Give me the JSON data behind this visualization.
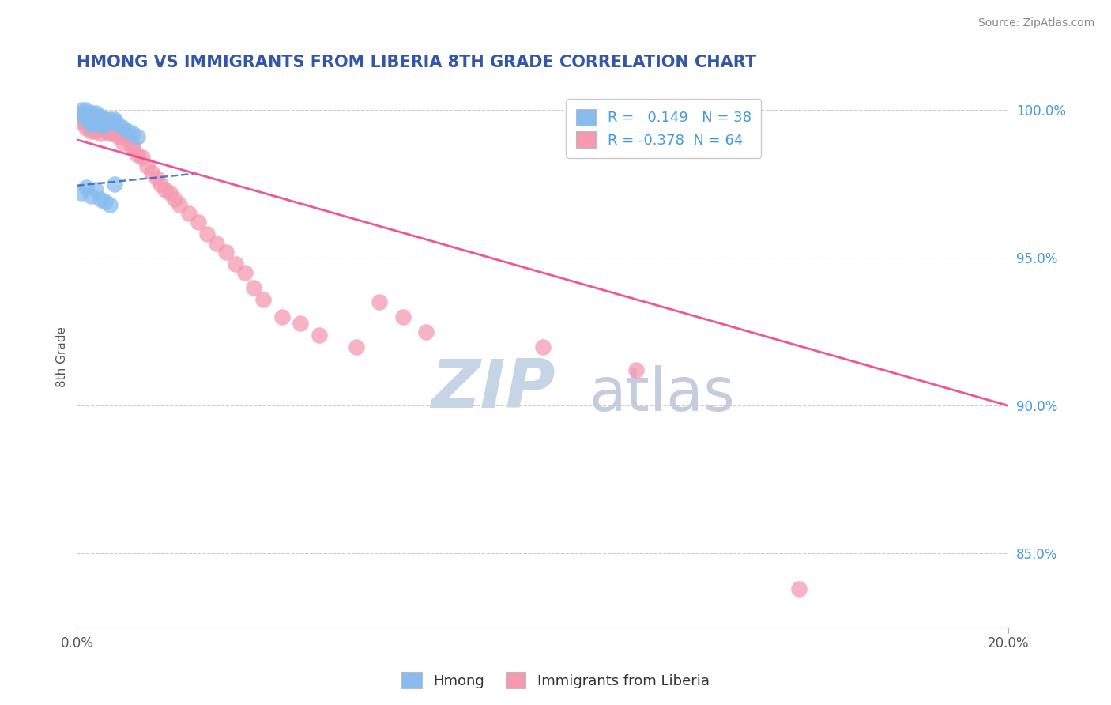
{
  "title": "HMONG VS IMMIGRANTS FROM LIBERIA 8TH GRADE CORRELATION CHART",
  "source": "Source: ZipAtlas.com",
  "ylabel": "8th Grade",
  "ylabel_right_ticks": [
    "100.0%",
    "95.0%",
    "90.0%",
    "85.0%"
  ],
  "ylabel_right_vals": [
    1.0,
    0.95,
    0.9,
    0.85
  ],
  "xlim": [
    0.0,
    0.2
  ],
  "ylim": [
    0.825,
    1.008
  ],
  "R_hmong": 0.149,
  "N_hmong": 38,
  "R_liberia": -0.378,
  "N_liberia": 64,
  "hmong_color": "#88BBEE",
  "liberia_color": "#F599B0",
  "hmong_line_color": "#3366CC",
  "liberia_line_color": "#EE4488",
  "watermark_zip": "ZIP",
  "watermark_atlas": "atlas",
  "watermark_color_zip": "#C5D5E5",
  "watermark_color_atlas": "#C5CCDD",
  "grid_color": "#CCCCCC",
  "title_color": "#3355AA",
  "axis_label_color": "#555555",
  "right_axis_color": "#4499DD",
  "hmong_x": [
    0.001,
    0.001,
    0.002,
    0.002,
    0.002,
    0.003,
    0.003,
    0.003,
    0.003,
    0.003,
    0.004,
    0.004,
    0.004,
    0.004,
    0.005,
    0.005,
    0.005,
    0.005,
    0.006,
    0.006,
    0.006,
    0.007,
    0.007,
    0.008,
    0.008,
    0.009,
    0.01,
    0.011,
    0.012,
    0.013,
    0.001,
    0.002,
    0.003,
    0.004,
    0.005,
    0.006,
    0.007,
    0.008
  ],
  "hmong_y": [
    1.0,
    0.999,
    1.0,
    0.998,
    0.997,
    0.999,
    0.998,
    0.997,
    0.996,
    0.995,
    0.999,
    0.998,
    0.997,
    0.996,
    0.998,
    0.997,
    0.996,
    0.995,
    0.997,
    0.996,
    0.995,
    0.997,
    0.996,
    0.997,
    0.996,
    0.995,
    0.994,
    0.993,
    0.992,
    0.991,
    0.972,
    0.974,
    0.971,
    0.973,
    0.97,
    0.969,
    0.968,
    0.975
  ],
  "liberia_x": [
    0.001,
    0.001,
    0.001,
    0.002,
    0.002,
    0.002,
    0.002,
    0.003,
    0.003,
    0.003,
    0.003,
    0.003,
    0.004,
    0.004,
    0.004,
    0.004,
    0.005,
    0.005,
    0.005,
    0.005,
    0.006,
    0.006,
    0.006,
    0.007,
    0.007,
    0.007,
    0.008,
    0.008,
    0.009,
    0.009,
    0.01,
    0.01,
    0.011,
    0.012,
    0.012,
    0.013,
    0.014,
    0.015,
    0.016,
    0.017,
    0.018,
    0.019,
    0.02,
    0.021,
    0.022,
    0.024,
    0.026,
    0.028,
    0.03,
    0.032,
    0.034,
    0.036,
    0.038,
    0.04,
    0.044,
    0.048,
    0.052,
    0.06,
    0.065,
    0.07,
    0.075,
    0.1,
    0.12,
    0.155
  ],
  "liberia_y": [
    0.998,
    0.997,
    0.996,
    0.998,
    0.996,
    0.995,
    0.994,
    0.997,
    0.996,
    0.995,
    0.994,
    0.993,
    0.997,
    0.995,
    0.994,
    0.993,
    0.996,
    0.995,
    0.994,
    0.992,
    0.995,
    0.994,
    0.993,
    0.995,
    0.993,
    0.992,
    0.994,
    0.992,
    0.993,
    0.991,
    0.992,
    0.989,
    0.99,
    0.988,
    0.987,
    0.985,
    0.984,
    0.981,
    0.979,
    0.977,
    0.975,
    0.973,
    0.972,
    0.97,
    0.968,
    0.965,
    0.962,
    0.958,
    0.955,
    0.952,
    0.948,
    0.945,
    0.94,
    0.936,
    0.93,
    0.928,
    0.924,
    0.92,
    0.935,
    0.93,
    0.925,
    0.92,
    0.912,
    0.838
  ],
  "hmong_trend": [
    0.0,
    0.025,
    0.9745,
    0.9785
  ],
  "liberia_trend": [
    0.0,
    0.2,
    0.99,
    0.9
  ]
}
